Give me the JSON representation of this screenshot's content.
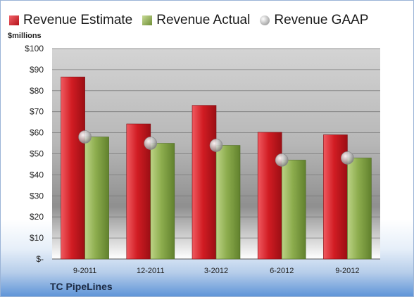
{
  "legend": {
    "estimate_label": "Revenue Estimate",
    "actual_label": "Revenue Actual",
    "gaap_label": "Revenue GAAP"
  },
  "unit_label": "$millions",
  "company": "TC PipeLines",
  "colors": {
    "estimate": "#c8141c",
    "actual": "#86a84a",
    "gaap": "#b8b8b8"
  },
  "chart_data": {
    "type": "bar",
    "categories": [
      "9-2011",
      "12-2011",
      "3-2012",
      "6-2012",
      "9-2012"
    ],
    "series": [
      {
        "name": "Revenue Estimate",
        "values": [
          86.5,
          64.2,
          73,
          60.2,
          59
        ]
      },
      {
        "name": "Revenue Actual",
        "values": [
          58,
          55,
          54,
          47,
          48
        ]
      },
      {
        "name": "Revenue GAAP",
        "values": [
          58,
          55,
          54,
          47,
          48
        ]
      }
    ],
    "yticks": [
      "$-",
      "$10",
      "$20",
      "$30",
      "$40",
      "$50",
      "$60",
      "$70",
      "$80",
      "$90",
      "$100"
    ],
    "ylim": [
      0,
      100
    ],
    "grid": true,
    "legend_position": "top"
  }
}
